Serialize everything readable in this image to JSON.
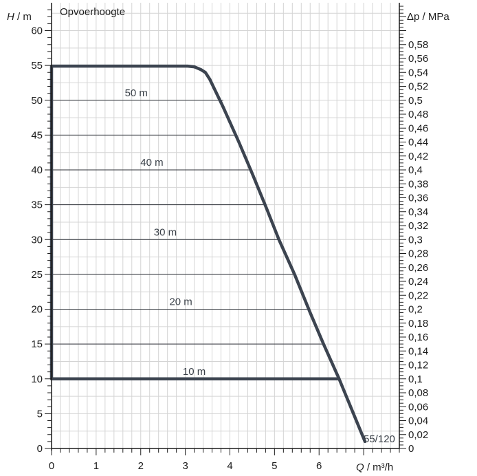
{
  "chart_data": {
    "type": "line",
    "title": "Opvoerhoogte",
    "curve_label": "55/120",
    "xlabel": {
      "symbol": "Q",
      "unit": " / m³/h"
    },
    "ylabel": {
      "symbol": "H",
      "unit": " / m"
    },
    "y2label": {
      "symbol": "Δp",
      "unit": " / MPa"
    },
    "xlim": [
      0,
      7.8
    ],
    "ylim": [
      0,
      64
    ],
    "y2lim": [
      0,
      0.64
    ],
    "x_ticks": [
      0,
      1,
      2,
      3,
      4,
      5,
      6
    ],
    "x_tick_labels": [
      "0",
      "1",
      "2",
      "3",
      "4",
      "5",
      "6"
    ],
    "y_ticks": [
      0,
      5,
      10,
      15,
      20,
      25,
      30,
      35,
      40,
      45,
      50,
      55,
      60
    ],
    "y_tick_labels": [
      "0",
      "5",
      "10",
      "15",
      "20",
      "25",
      "30",
      "35",
      "40",
      "45",
      "50",
      "55",
      "60"
    ],
    "y2_ticks": [
      0,
      0.02,
      0.04,
      0.06,
      0.08,
      0.1,
      0.12,
      0.14,
      0.16,
      0.18,
      0.2,
      0.22,
      0.24,
      0.26,
      0.28,
      0.3,
      0.32,
      0.34,
      0.36,
      0.38,
      0.4,
      0.42,
      0.44,
      0.46,
      0.48,
      0.5,
      0.52,
      0.54,
      0.56,
      0.58
    ],
    "y2_tick_labels": [
      "0",
      "0,02",
      "0,04",
      "0,06",
      "0,08",
      "0,1",
      "0,12",
      "0,14",
      "0,16",
      "0,18",
      "0,2",
      "0,22",
      "0,24",
      "0,26",
      "0,28",
      "0,3",
      "0,32",
      "0,34",
      "0,36",
      "0,38",
      "0,4",
      "0,42",
      "0,44",
      "0,46",
      "0,48",
      "0,5",
      "0,52",
      "0,54",
      "0,56",
      "0,58"
    ],
    "grid": true,
    "series": [
      {
        "x": [
          0,
          0,
          3.05,
          3.2,
          3.35,
          3.45,
          3.55,
          3.85,
          4.2,
          4.5,
          4.82,
          5.1,
          5.45,
          5.8,
          6.1,
          6.45,
          7.03
        ],
        "y": [
          10,
          54.9,
          54.9,
          54.8,
          54.4,
          54,
          53,
          49,
          44,
          39.5,
          34.5,
          30,
          25,
          19.5,
          15,
          10,
          1
        ]
      },
      {
        "x": [
          0,
          6.45
        ],
        "y": [
          10,
          10
        ]
      }
    ],
    "limit_lines": [
      {
        "label": "50 m",
        "y": 50,
        "x_end": 3.85,
        "label_x": 1.9
      },
      {
        "label": "",
        "y": 45,
        "x_end": 4.12
      },
      {
        "label": "40 m",
        "y": 40,
        "x_end": 4.47,
        "label_x": 2.25
      },
      {
        "label": "",
        "y": 35,
        "x_end": 4.75
      },
      {
        "label": "30 m",
        "y": 30,
        "x_end": 5.1,
        "label_x": 2.55
      },
      {
        "label": "",
        "y": 25,
        "x_end": 5.42
      },
      {
        "label": "20 m",
        "y": 20,
        "x_end": 5.78,
        "label_x": 2.9
      },
      {
        "label": "",
        "y": 15,
        "x_end": 6.08
      },
      {
        "label": "10 m",
        "y": 10,
        "x_end": 6.45,
        "label_x": 3.2
      }
    ],
    "colors": {
      "curve": "#3c4450",
      "thin_line": "#2b2f36",
      "grid": "#d4d4d4",
      "axis": "#1c1c1c"
    }
  }
}
